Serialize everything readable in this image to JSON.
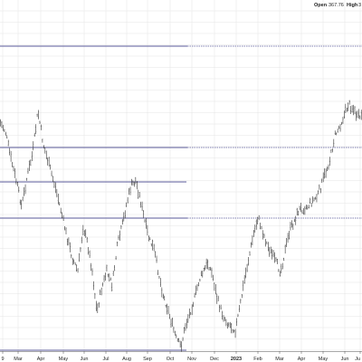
{
  "header": {
    "open_label": "Open",
    "open_value": "367.76",
    "high_label": "High",
    "high_value": "3"
  },
  "chart_data": {
    "type": "ohlc",
    "title": "",
    "xlabel": "",
    "ylabel": "",
    "x_ticks": [
      "9",
      "Mar",
      "Apr",
      "May",
      "Jun",
      "Jul",
      "Aug",
      "Sep",
      "Oct",
      "Nov",
      "Dec",
      "2023",
      "Feb",
      "Mar",
      "Apr",
      "May",
      "Jun",
      "Ju"
    ],
    "year_tick": "2023",
    "grid": true,
    "horizontal_levels": [
      {
        "y_frac": 0.0,
        "style": "solid+dashed"
      },
      {
        "style": "solid+dashed"
      },
      {
        "style": "solid"
      },
      {
        "style": "solid+dashed"
      },
      {
        "style": "solid"
      }
    ],
    "price_path": [
      [
        0,
        135
      ],
      [
        6,
        145
      ],
      [
        12,
        175
      ],
      [
        18,
        200
      ],
      [
        24,
        228
      ],
      [
        30,
        195
      ],
      [
        36,
        170
      ],
      [
        42,
        123
      ],
      [
        48,
        160
      ],
      [
        55,
        185
      ],
      [
        62,
        210
      ],
      [
        68,
        235
      ],
      [
        74,
        262
      ],
      [
        80,
        285
      ],
      [
        86,
        300
      ],
      [
        92,
        250
      ],
      [
        97,
        270
      ],
      [
        102,
        300
      ],
      [
        107,
        345
      ],
      [
        112,
        320
      ],
      [
        118,
        300
      ],
      [
        124,
        315
      ],
      [
        130,
        270
      ],
      [
        135,
        250
      ],
      [
        140,
        225
      ],
      [
        145,
        205
      ],
      [
        150,
        200
      ],
      [
        155,
        220
      ],
      [
        160,
        245
      ],
      [
        165,
        265
      ],
      [
        170,
        275
      ],
      [
        175,
        300
      ],
      [
        180,
        325
      ],
      [
        185,
        340
      ],
      [
        190,
        358
      ],
      [
        195,
        375
      ],
      [
        200,
        383
      ],
      [
        205,
        360
      ],
      [
        210,
        345
      ],
      [
        215,
        330
      ],
      [
        220,
        310
      ],
      [
        225,
        300
      ],
      [
        230,
        290
      ],
      [
        235,
        305
      ],
      [
        240,
        330
      ],
      [
        245,
        345
      ],
      [
        250,
        355
      ],
      [
        255,
        360
      ],
      [
        260,
        365
      ],
      [
        265,
        340
      ],
      [
        270,
        310
      ],
      [
        275,
        285
      ],
      [
        280,
        260
      ],
      [
        285,
        240
      ],
      [
        290,
        255
      ],
      [
        295,
        270
      ],
      [
        300,
        280
      ],
      [
        305,
        290
      ],
      [
        310,
        300
      ],
      [
        315,
        278
      ],
      [
        320,
        255
      ],
      [
        325,
        245
      ],
      [
        330,
        232
      ],
      [
        335,
        230
      ],
      [
        340,
        228
      ],
      [
        345,
        222
      ],
      [
        350,
        218
      ],
      [
        355,
        205
      ],
      [
        360,
        190
      ],
      [
        365,
        175
      ],
      [
        370,
        150
      ],
      [
        375,
        140
      ],
      [
        380,
        128
      ],
      [
        385,
        115
      ],
      [
        390,
        120
      ],
      [
        395,
        130
      ],
      [
        400,
        128
      ]
    ]
  }
}
